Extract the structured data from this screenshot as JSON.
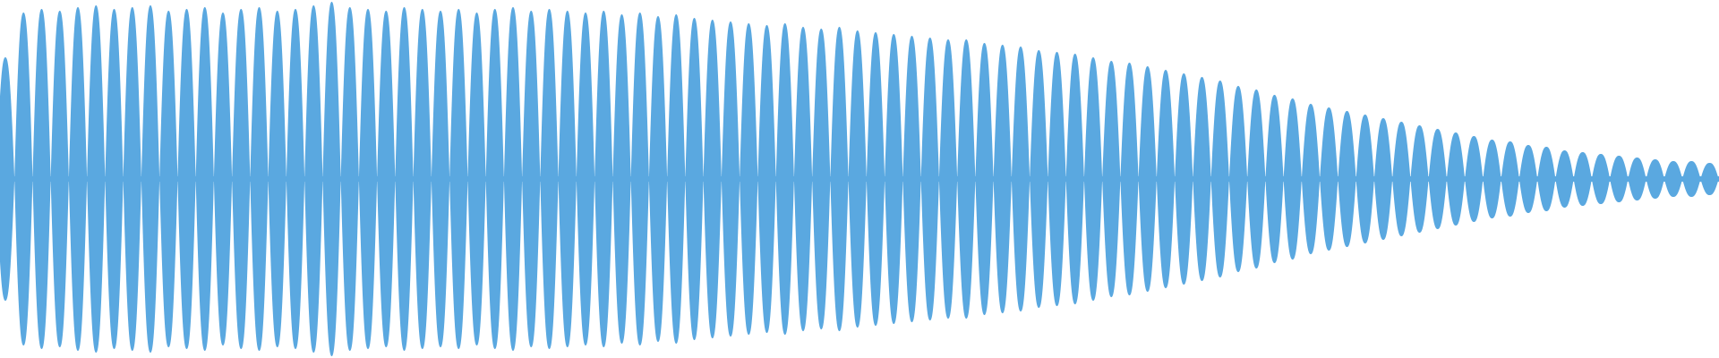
{
  "chart_data": {
    "type": "waveform",
    "color": "#5aa8e0",
    "ylim": [
      0,
      1
    ],
    "values": [
      0.68,
      0.93,
      0.95,
      0.94,
      0.96,
      0.97,
      0.95,
      0.96,
      0.97,
      0.94,
      0.95,
      0.96,
      0.93,
      0.95,
      0.96,
      0.94,
      0.95,
      0.97,
      0.99,
      0.96,
      0.95,
      0.94,
      0.96,
      0.95,
      0.94,
      0.95,
      0.93,
      0.95,
      0.96,
      0.94,
      0.95,
      0.94,
      0.93,
      0.94,
      0.92,
      0.93,
      0.91,
      0.92,
      0.9,
      0.89,
      0.88,
      0.87,
      0.86,
      0.87,
      0.85,
      0.84,
      0.85,
      0.83,
      0.82,
      0.81,
      0.8,
      0.79,
      0.78,
      0.78,
      0.76,
      0.75,
      0.74,
      0.72,
      0.71,
      0.7,
      0.68,
      0.66,
      0.65,
      0.63,
      0.61,
      0.59,
      0.57,
      0.55,
      0.52,
      0.5,
      0.47,
      0.45,
      0.42,
      0.4,
      0.38,
      0.36,
      0.34,
      0.32,
      0.3,
      0.28,
      0.26,
      0.24,
      0.22,
      0.21,
      0.19,
      0.18,
      0.16,
      0.15,
      0.14,
      0.13,
      0.12,
      0.11,
      0.1,
      0.1,
      0.09
    ]
  }
}
